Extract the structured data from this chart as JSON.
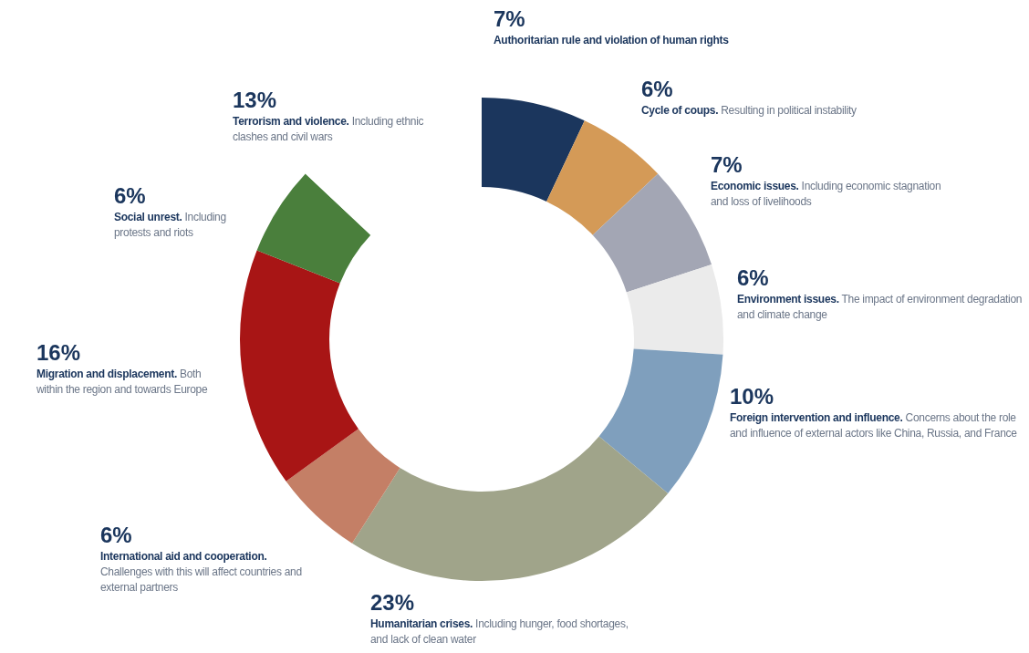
{
  "chart_data": {
    "type": "donut",
    "categories": [
      "Authoritarian rule and violation of human rights",
      "Cycle of coups. Resulting in political instability",
      "Economic issues. Including economic stagnation and loss of livelihoods",
      "Environment issues. The impact of environment degradation and climate change",
      "Foreign intervention and influence. Concerns about the role and influence of external actors like China, Russia, and France",
      "Humanitarian crises. Including hunger, food shortages, and lack of clean water",
      "International aid and cooperation. Challenges with this will affect countries and external partners",
      "Migration and displacement. Both within the region and towards Europe",
      "Social unrest. Including protests and riots",
      "Terrorism and violence. Including ethnic clashes and civil wars"
    ],
    "values": [
      7,
      6,
      7,
      6,
      10,
      23,
      6,
      16,
      6,
      13
    ],
    "value_labels": [
      "7%",
      "6%",
      "7%",
      "6%",
      "10%",
      "23%",
      "6%",
      "16%",
      "6%",
      "13%"
    ],
    "colors": [
      "#1b365d",
      "#d49a57",
      "#a3a6b4",
      "#ebebeb",
      "#7f9fbd",
      "#a0a48a",
      "#c47f66",
      "#a81515",
      "#4a7f3c",
      "#ffffff"
    ]
  }
}
